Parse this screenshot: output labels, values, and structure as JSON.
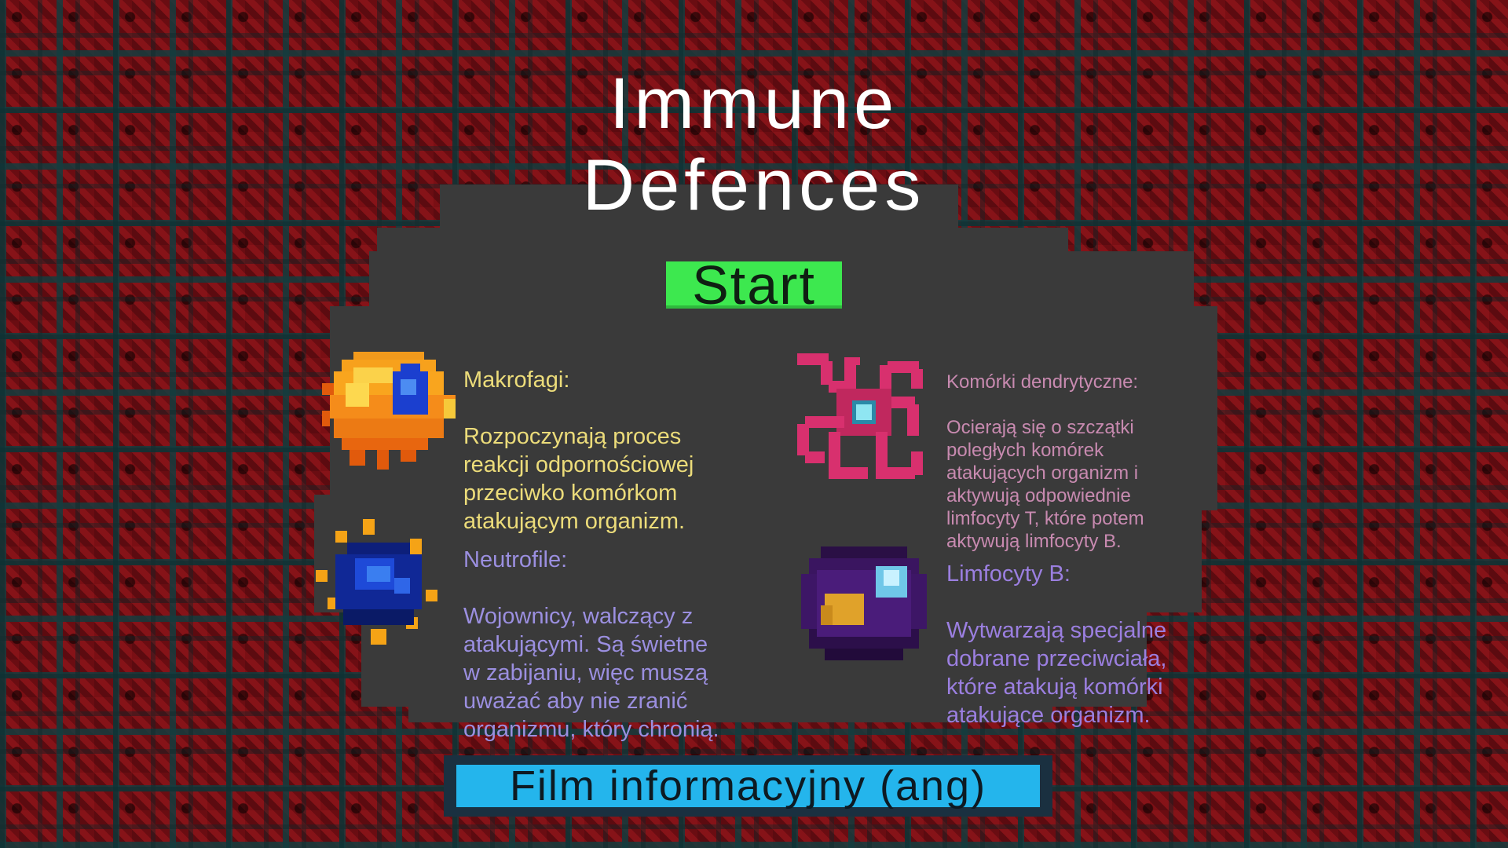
{
  "title": {
    "line1": "Immune",
    "line2": "Defences"
  },
  "buttons": {
    "start_label": "Start",
    "film_label": "Film informacyjny (ang)"
  },
  "cells": {
    "macrophages": {
      "name": "Makrofagi:",
      "description": "Rozpoczynają proces\nreakcji odpornościowej\nprzeciwko komórkom\natakującym organizm."
    },
    "neutrophils": {
      "name": "Neutrofile:",
      "description": "Wojownicy, walczący z\natakującymi. Są świetne\nw zabijaniu, więc muszą\nuważać aby nie zranić\norganizmu, który chronią."
    },
    "dendritic": {
      "name": "Komórki dendrytyczne:",
      "description": "Ocierają się o szczątki\npoległych komórek\natakujących organizm i\naktywują odpowiednie\nlimfocyty T, które potem\naktywują limfocyty B."
    },
    "b_lymphocytes": {
      "name": "Limfocyty B:",
      "description": "Wytwarzają specjalne\ndobrane przeciwciała,\nktóre atakują komórki\natakujące organizm."
    }
  },
  "colors": {
    "start_button": "#3de84f",
    "film_button": "#24b5ec",
    "macrophages_text": "#ecdc7a",
    "neutrophils_text": "#9b8fe0",
    "dendritic_text": "#c88ab0",
    "lymphocytes_text": "#9b7fe0",
    "panel": "#3a3a3a",
    "background": "#6a0d12"
  },
  "icons": {
    "macrophage": "macrophage-sprite-icon",
    "neutrophil": "neutrophil-sprite-icon",
    "dendritic": "dendritic-cell-sprite-icon",
    "lymphocyte": "b-lymphocyte-sprite-icon"
  }
}
